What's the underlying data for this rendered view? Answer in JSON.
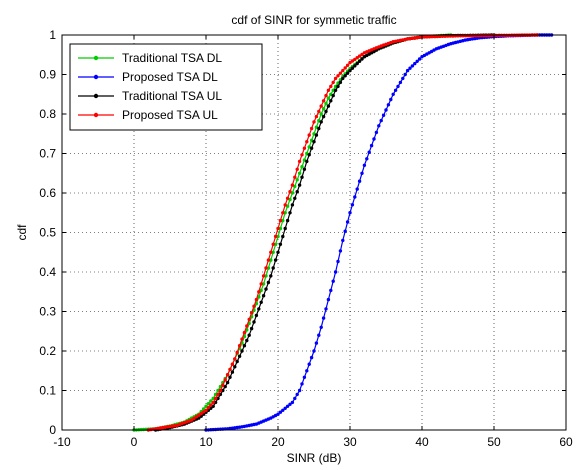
{
  "chart_data": {
    "type": "line",
    "title": "cdf of SINR for symmetic traffic",
    "xlabel": "SINR (dB)",
    "ylabel": "cdf",
    "xlim": [
      -10,
      60
    ],
    "ylim": [
      0,
      1
    ],
    "xticks": [
      -10,
      0,
      10,
      20,
      30,
      40,
      50,
      60
    ],
    "yticks": [
      0,
      0.1,
      0.2,
      0.3,
      0.4,
      0.5,
      0.6,
      0.7,
      0.8,
      0.9,
      1
    ],
    "grid": true,
    "legend_position": "top-left",
    "series": [
      {
        "name": "Traditional TSA DL",
        "color": "#00cc00",
        "x": [
          0,
          3,
          5,
          7,
          9,
          11,
          12,
          13,
          14,
          15,
          16,
          17,
          18,
          19,
          20,
          21,
          22,
          23,
          24,
          25,
          26,
          27,
          28,
          29,
          30,
          32,
          34,
          36,
          38,
          40,
          42,
          44
        ],
        "y": [
          0,
          0.003,
          0.01,
          0.02,
          0.04,
          0.08,
          0.11,
          0.14,
          0.18,
          0.22,
          0.27,
          0.32,
          0.37,
          0.43,
          0.49,
          0.55,
          0.6,
          0.65,
          0.7,
          0.75,
          0.8,
          0.84,
          0.87,
          0.895,
          0.915,
          0.945,
          0.965,
          0.98,
          0.99,
          0.995,
          0.998,
          1.0
        ]
      },
      {
        "name": "Proposed TSA DL",
        "color": "#0000ff",
        "x": [
          10,
          13,
          15,
          17,
          19,
          20,
          21,
          22,
          23,
          24,
          25,
          26,
          27,
          28,
          29,
          30,
          31,
          32,
          33,
          34,
          35,
          36,
          37,
          38,
          40,
          42,
          44,
          46,
          48,
          50,
          52,
          54,
          56,
          58
        ],
        "y": [
          0,
          0.003,
          0.008,
          0.015,
          0.03,
          0.04,
          0.055,
          0.07,
          0.1,
          0.15,
          0.2,
          0.26,
          0.33,
          0.4,
          0.48,
          0.55,
          0.61,
          0.67,
          0.72,
          0.77,
          0.81,
          0.85,
          0.88,
          0.91,
          0.945,
          0.965,
          0.978,
          0.987,
          0.993,
          0.996,
          0.998,
          0.999,
          1.0,
          1.0
        ]
      },
      {
        "name": "Traditional TSA UL",
        "color": "#000000",
        "x": [
          3,
          5,
          7,
          9,
          11,
          12,
          13,
          14,
          15,
          16,
          17,
          18,
          19,
          20,
          21,
          22,
          23,
          24,
          25,
          26,
          27,
          28,
          29,
          30,
          32,
          34,
          36,
          38,
          40,
          43,
          46,
          50
        ],
        "y": [
          0,
          0.006,
          0.015,
          0.03,
          0.06,
          0.09,
          0.12,
          0.16,
          0.2,
          0.24,
          0.29,
          0.34,
          0.39,
          0.45,
          0.51,
          0.57,
          0.62,
          0.68,
          0.73,
          0.78,
          0.82,
          0.86,
          0.89,
          0.91,
          0.945,
          0.965,
          0.98,
          0.99,
          0.995,
          0.998,
          0.999,
          1.0
        ]
      },
      {
        "name": "Proposed TSA UL",
        "color": "#ff0000",
        "x": [
          2,
          4,
          6,
          8,
          10,
          11,
          12,
          13,
          14,
          15,
          16,
          17,
          18,
          19,
          20,
          21,
          22,
          23,
          24,
          25,
          26,
          27,
          28,
          29,
          30,
          32,
          34,
          36,
          38,
          40,
          45,
          50,
          56
        ],
        "y": [
          0,
          0.006,
          0.012,
          0.025,
          0.05,
          0.07,
          0.1,
          0.14,
          0.18,
          0.23,
          0.28,
          0.33,
          0.39,
          0.45,
          0.51,
          0.57,
          0.62,
          0.68,
          0.73,
          0.78,
          0.82,
          0.86,
          0.89,
          0.91,
          0.93,
          0.955,
          0.97,
          0.983,
          0.99,
          0.995,
          0.998,
          0.999,
          1.0
        ]
      }
    ]
  }
}
